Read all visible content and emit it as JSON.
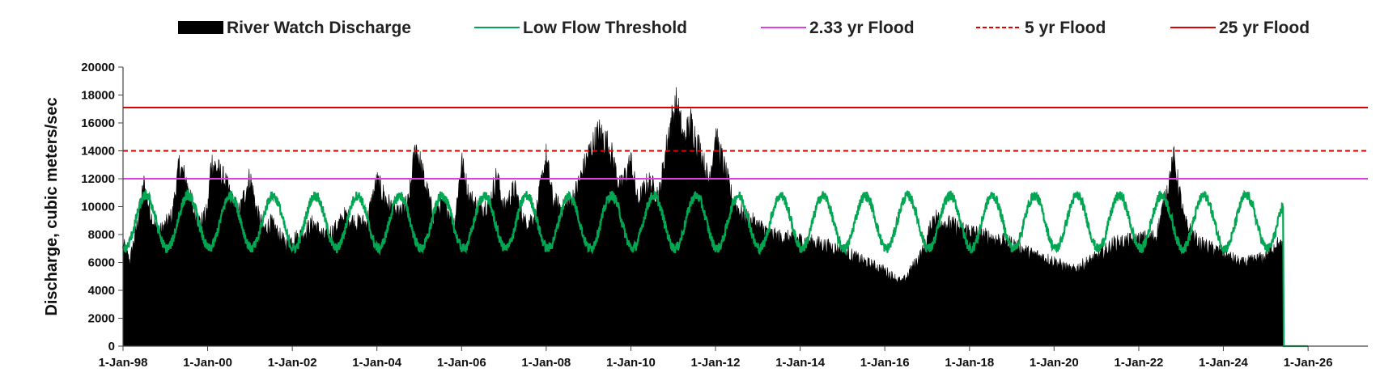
{
  "chart_data": {
    "type": "area",
    "title": "",
    "xlabel": "",
    "ylabel": "Discharge, cubic meters/sec",
    "xlim": [
      "1998-01-01",
      "2027-06-01"
    ],
    "ylim": [
      0,
      20000
    ],
    "y_ticks": [
      0,
      2000,
      4000,
      6000,
      8000,
      10000,
      12000,
      14000,
      16000,
      18000,
      20000
    ],
    "x_ticks": [
      "1-Jan-98",
      "1-Jan-00",
      "1-Jan-02",
      "1-Jan-04",
      "1-Jan-06",
      "1-Jan-08",
      "1-Jan-10",
      "1-Jan-12",
      "1-Jan-14",
      "1-Jan-16",
      "1-Jan-18",
      "1-Jan-20",
      "1-Jan-22",
      "1-Jan-24",
      "1-Jan-26"
    ],
    "grid": false,
    "legend_position": "top",
    "series": [
      {
        "name": "River Watch Discharge",
        "style": "filled-area",
        "color": "#000000",
        "points": [
          [
            "1998-01-01",
            7500
          ],
          [
            "1998-03-01",
            6200
          ],
          [
            "1998-05-01",
            8800
          ],
          [
            "1998-07-01",
            11800
          ],
          [
            "1998-09-01",
            9500
          ],
          [
            "1998-11-01",
            8200
          ],
          [
            "1999-01-01",
            8800
          ],
          [
            "1999-03-01",
            9500
          ],
          [
            "1999-05-01",
            13200
          ],
          [
            "1999-07-01",
            12000
          ],
          [
            "1999-09-01",
            9800
          ],
          [
            "1999-11-01",
            9000
          ],
          [
            "2000-01-01",
            9800
          ],
          [
            "2000-02-01",
            13500
          ],
          [
            "2000-04-01",
            12800
          ],
          [
            "2000-06-01",
            12000
          ],
          [
            "2000-08-01",
            10500
          ],
          [
            "2000-10-01",
            9800
          ],
          [
            "2001-01-01",
            12400
          ],
          [
            "2001-03-01",
            9800
          ],
          [
            "2001-05-01",
            8500
          ],
          [
            "2001-07-01",
            9000
          ],
          [
            "2001-09-01",
            8200
          ],
          [
            "2001-11-01",
            7500
          ],
          [
            "2002-01-01",
            7800
          ],
          [
            "2002-04-01",
            8200
          ],
          [
            "2002-07-01",
            9000
          ],
          [
            "2002-10-01",
            8000
          ],
          [
            "2003-01-01",
            8500
          ],
          [
            "2003-04-01",
            9500
          ],
          [
            "2003-07-01",
            9000
          ],
          [
            "2003-10-01",
            9000
          ],
          [
            "2004-01-01",
            12000
          ],
          [
            "2004-04-01",
            10500
          ],
          [
            "2004-07-01",
            9500
          ],
          [
            "2004-10-01",
            10500
          ],
          [
            "2004-12-01",
            14700
          ],
          [
            "2005-02-01",
            12500
          ],
          [
            "2005-05-01",
            9500
          ],
          [
            "2005-08-01",
            10500
          ],
          [
            "2005-11-01",
            9000
          ],
          [
            "2006-01-01",
            13500
          ],
          [
            "2006-03-01",
            11000
          ],
          [
            "2006-06-01",
            10000
          ],
          [
            "2006-09-01",
            10500
          ],
          [
            "2006-11-01",
            12500
          ],
          [
            "2007-01-01",
            10000
          ],
          [
            "2007-04-01",
            11500
          ],
          [
            "2007-07-01",
            9000
          ],
          [
            "2007-10-01",
            9500
          ],
          [
            "2008-01-01",
            13800
          ],
          [
            "2008-03-01",
            10500
          ],
          [
            "2008-06-01",
            10000
          ],
          [
            "2008-09-01",
            11000
          ],
          [
            "2009-01-01",
            14000
          ],
          [
            "2009-04-01",
            15600
          ],
          [
            "2009-07-01",
            14500
          ],
          [
            "2009-10-01",
            11500
          ],
          [
            "2010-01-01",
            13500
          ],
          [
            "2010-03-01",
            10500
          ],
          [
            "2010-06-01",
            12000
          ],
          [
            "2010-09-01",
            11000
          ],
          [
            "2010-12-01",
            16000
          ],
          [
            "2011-02-01",
            17700
          ],
          [
            "2011-04-01",
            15000
          ],
          [
            "2011-06-01",
            16300
          ],
          [
            "2011-09-01",
            14000
          ],
          [
            "2011-11-01",
            12000
          ],
          [
            "2012-01-01",
            15200
          ],
          [
            "2012-03-01",
            13500
          ],
          [
            "2012-06-01",
            10500
          ],
          [
            "2012-09-01",
            9500
          ],
          [
            "2013-01-01",
            8800
          ],
          [
            "2013-06-01",
            8000
          ],
          [
            "2013-12-01",
            7800
          ],
          [
            "2014-06-01",
            7500
          ],
          [
            "2015-01-01",
            7000
          ],
          [
            "2015-06-01",
            6300
          ],
          [
            "2016-01-01",
            5500
          ],
          [
            "2016-06-01",
            4600
          ],
          [
            "2016-12-01",
            7000
          ],
          [
            "2017-03-01",
            9500
          ],
          [
            "2017-06-01",
            9000
          ],
          [
            "2017-12-01",
            8500
          ],
          [
            "2018-06-01",
            8000
          ],
          [
            "2019-01-01",
            7500
          ],
          [
            "2019-06-01",
            6800
          ],
          [
            "2020-01-01",
            6200
          ],
          [
            "2020-06-01",
            5500
          ],
          [
            "2021-01-01",
            6500
          ],
          [
            "2021-06-01",
            7500
          ],
          [
            "2022-01-01",
            7800
          ],
          [
            "2022-06-01",
            8000
          ],
          [
            "2022-11-01",
            13600
          ],
          [
            "2023-02-01",
            9000
          ],
          [
            "2023-06-01",
            7500
          ],
          [
            "2024-01-01",
            6800
          ],
          [
            "2024-06-01",
            6000
          ],
          [
            "2025-01-01",
            6500
          ],
          [
            "2025-04-01",
            7500
          ],
          [
            "2025-06-01",
            7200
          ],
          [
            "2025-06-10",
            0
          ]
        ]
      },
      {
        "name": "Low Flow Threshold",
        "style": "line",
        "color": "#00a651",
        "seasonal_cycle": {
          "start": "1998-01-01",
          "end": "2025-06-01",
          "peak_month": 7,
          "min_value": 7000,
          "max_value": 10800
        },
        "tail": [
          [
            "2025-06-05",
            0
          ],
          [
            "2026-01-01",
            0
          ]
        ]
      },
      {
        "name": "2.33 yr Flood",
        "style": "line",
        "color": "#e040e0",
        "value": 12000
      },
      {
        "name": "5 yr Flood",
        "style": "dashed-line",
        "color": "#dd0000",
        "value": 14000
      },
      {
        "name": "25 yr Flood",
        "style": "line",
        "color": "#dd0000",
        "value": 17100
      }
    ]
  }
}
